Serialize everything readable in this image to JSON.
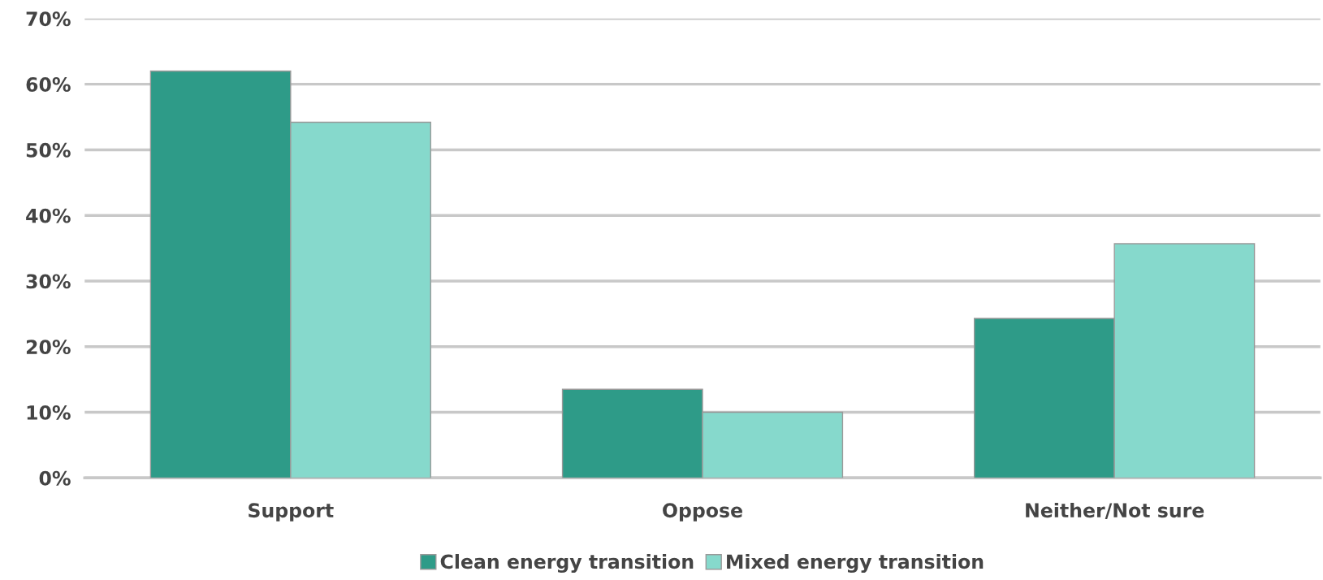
{
  "chart_data": {
    "type": "bar",
    "categories": [
      "Support",
      "Oppose",
      "Neither/Not sure"
    ],
    "series": [
      {
        "name": "Clean energy transition",
        "color": "#2e9b88",
        "values": [
          62,
          13.5,
          24.3
        ]
      },
      {
        "name": "Mixed energy transition",
        "color": "#86d9cc",
        "values": [
          54.2,
          10,
          35.7
        ]
      }
    ],
    "ylim": [
      0,
      70
    ],
    "yticks": [
      {
        "value": 0,
        "label": "0%"
      },
      {
        "value": 10,
        "label": "10%"
      },
      {
        "value": 20,
        "label": "20%"
      },
      {
        "value": 30,
        "label": "30%"
      },
      {
        "value": 40,
        "label": "40%"
      },
      {
        "value": 50,
        "label": "50%"
      },
      {
        "value": 60,
        "label": "60%"
      },
      {
        "value": 70,
        "label": "70%"
      }
    ],
    "grid": "y",
    "legend": "bottom"
  }
}
